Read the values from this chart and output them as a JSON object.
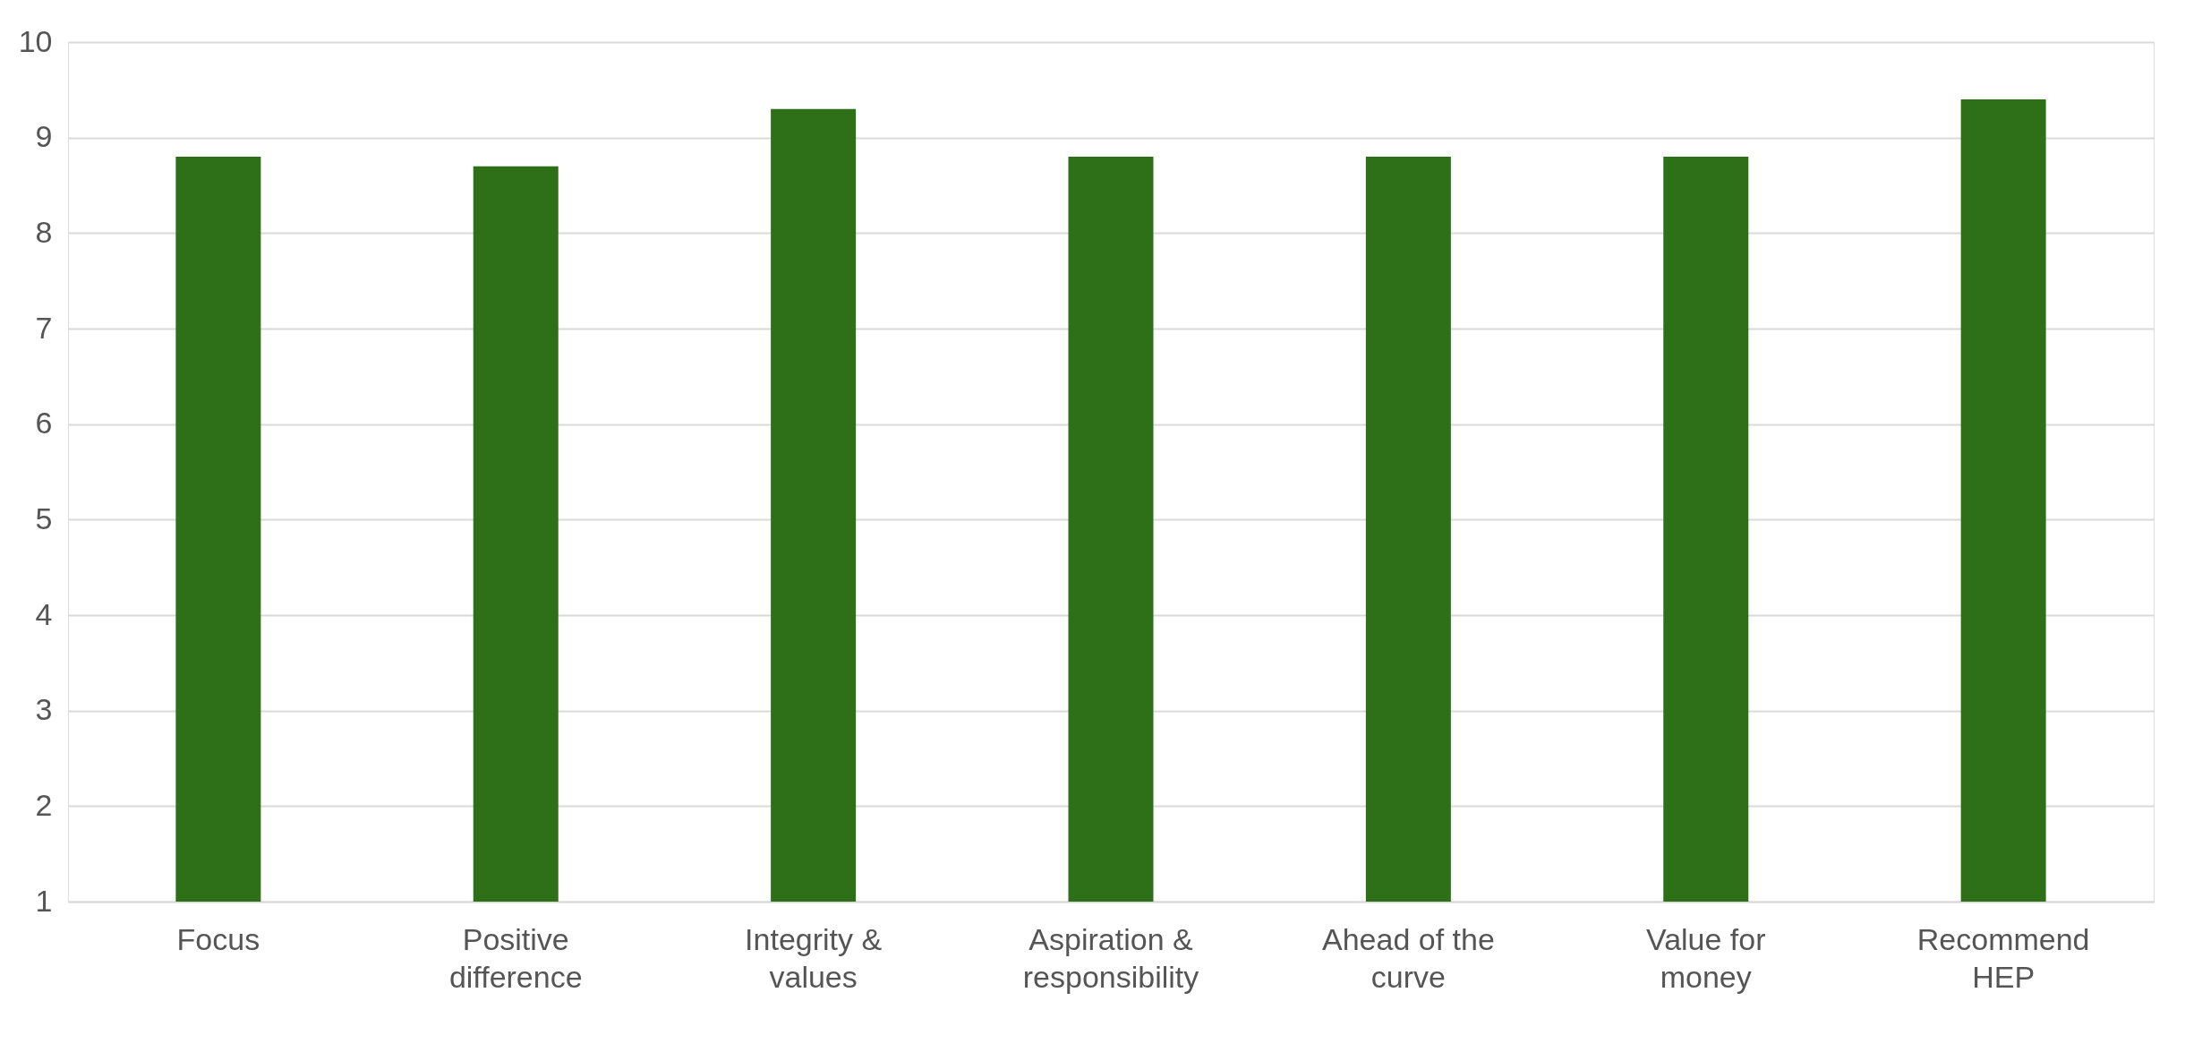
{
  "chart_data": {
    "type": "bar",
    "categories": [
      "Focus",
      "Positive difference",
      "Integrity & values",
      "Aspiration & responsibility",
      "Ahead of the curve",
      "Value for money",
      "Recommend HEP"
    ],
    "values": [
      8.8,
      8.7,
      9.3,
      8.8,
      8.8,
      8.8,
      9.4
    ],
    "color": "#2e7018",
    "ylim": [
      1,
      10
    ],
    "yticks": [
      1,
      2,
      3,
      4,
      5,
      6,
      7,
      8,
      9,
      10
    ],
    "grid": "y"
  }
}
